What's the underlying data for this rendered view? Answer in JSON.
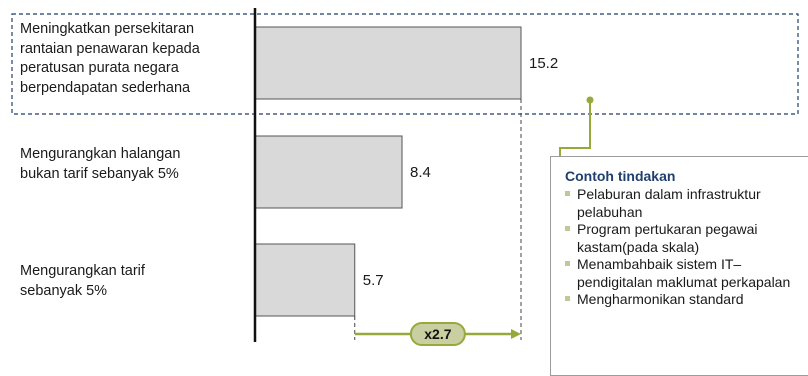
{
  "chart_data": {
    "type": "bar",
    "orientation": "horizontal",
    "categories": [
      "Meningkatkan persekitaran rantaian penawaran kepada peratusan purata negara berpendapatan sederhana",
      "Mengurangkan halangan bukan tarif sebanyak 5%",
      "Mengurangkan tarif sebanyak 5%"
    ],
    "values": [
      15.2,
      8.4,
      5.7
    ],
    "value_labels": [
      "15.2",
      "8.4",
      "5.7"
    ],
    "highlighted_category_index": 0,
    "xlim": [
      0,
      16
    ],
    "grid": false,
    "multiplier_label": "x2.7",
    "title": "",
    "xlabel": "",
    "ylabel": ""
  },
  "callout": {
    "title": "Contoh tindakan",
    "items": [
      "Pelaburan dalam infrastruktur pelabuhan",
      "Program pertukaran pegawai kastam(pada skala)",
      "Menambahbaik sistem IT– pendigitalan maklumat perkapalan",
      "Mengharmonikan standard"
    ]
  },
  "colors": {
    "bar_fill": "#d9d9d9",
    "bar_stroke": "#555555",
    "accent": "#98a83a",
    "highlight_box": "#1f3f6e",
    "axis": "#111111",
    "multiplier_fill": "#c9cfa0"
  }
}
